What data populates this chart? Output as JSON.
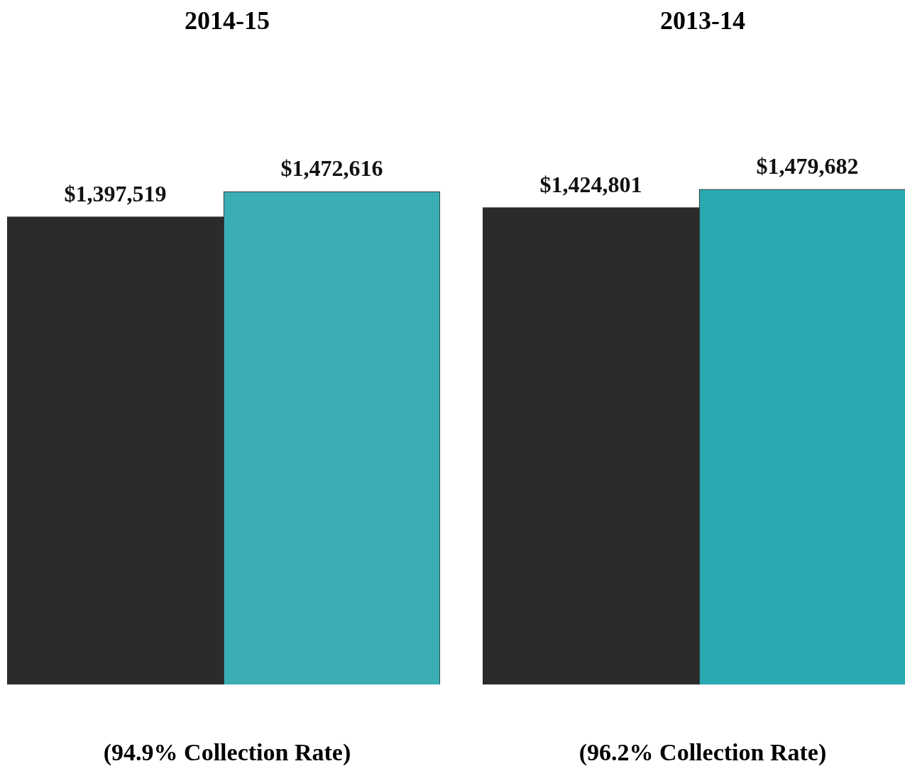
{
  "chart_data": [
    {
      "type": "bar",
      "title": "2014-15",
      "categories": [
        null,
        null
      ],
      "values": [
        1397519,
        1472616
      ],
      "colors": [
        "#2b2b2b",
        "#3aaeb4"
      ],
      "value_labels": [
        "$1,397,519",
        "$1,472,616"
      ],
      "annotations": [
        "(94.9% Collection Rate)"
      ]
    },
    {
      "type": "bar",
      "title": "2013-14",
      "categories": [
        null,
        null
      ],
      "values": [
        1424801,
        1479682
      ],
      "colors": [
        "#2b2b2b",
        "#2aa8b0"
      ],
      "value_labels": [
        "$1,424,801",
        "$1,479,682"
      ],
      "annotations": [
        "(96.2% Collection Rate)"
      ]
    }
  ]
}
